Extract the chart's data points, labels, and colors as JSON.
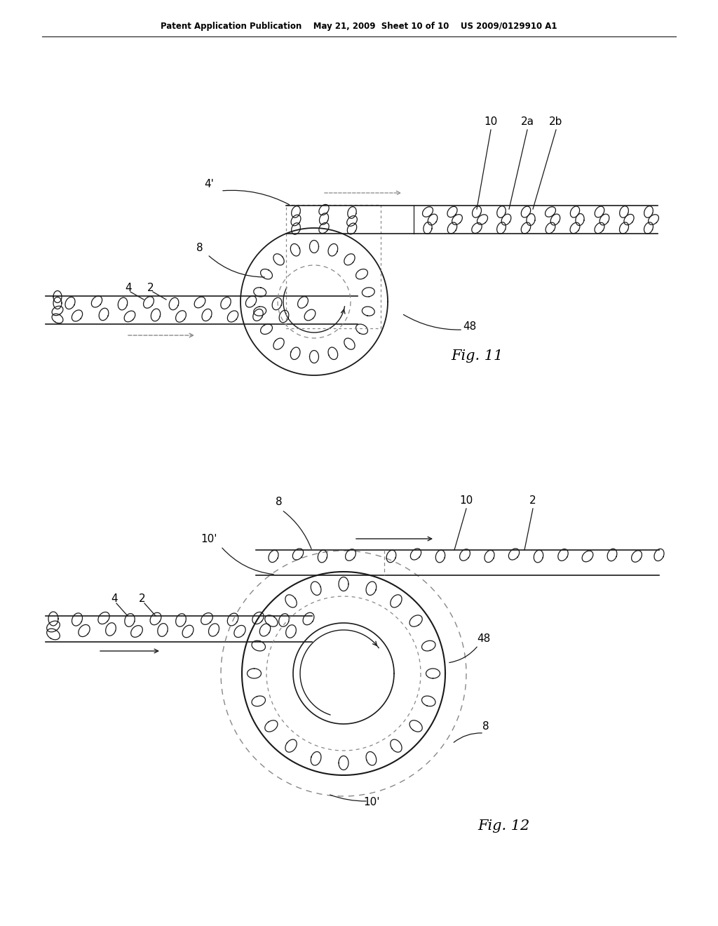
{
  "bg_color": "#ffffff",
  "line_color": "#1a1a1a",
  "dashed_color": "#888888",
  "header_text": "Patent Application Publication    May 21, 2009  Sheet 10 of 10    US 2009/0129910 A1",
  "fig11_label": "Fig. 11",
  "fig12_label": "Fig. 12"
}
